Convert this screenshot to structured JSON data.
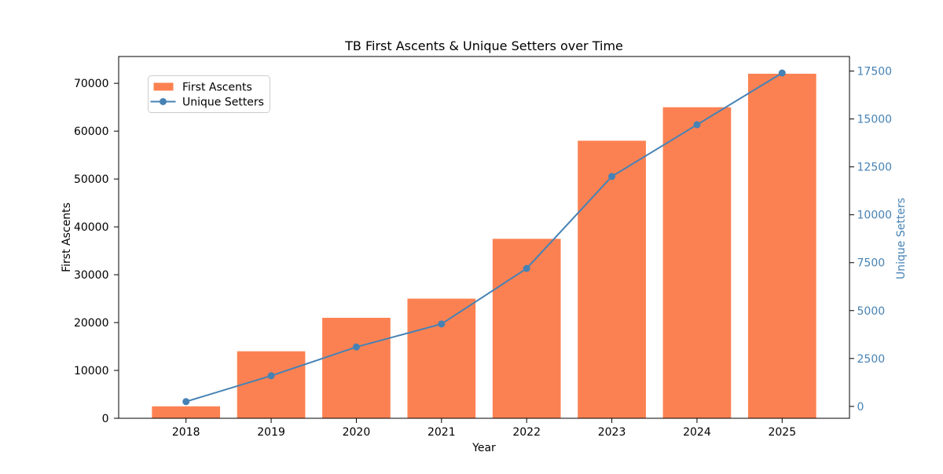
{
  "chart_data": {
    "type": "bar+line",
    "title": "TB First Ascents & Unique Setters over Time",
    "xlabel": "Year",
    "categories": [
      "2018",
      "2019",
      "2020",
      "2021",
      "2022",
      "2023",
      "2024",
      "2025"
    ],
    "series": [
      {
        "name": "First Ascents",
        "type": "bar",
        "axis": "left",
        "color": "#FC8152",
        "values": [
          2500,
          14000,
          21000,
          25000,
          37500,
          58000,
          65000,
          72000
        ]
      },
      {
        "name": "Unique Setters",
        "type": "line",
        "axis": "right",
        "color": "#4682B4",
        "marker": "circle",
        "values": [
          250,
          1600,
          3100,
          4300,
          7200,
          12000,
          14700,
          17400
        ]
      }
    ],
    "left_axis": {
      "label": "First Ascents",
      "ticks": [
        "0",
        "10000",
        "20000",
        "30000",
        "40000",
        "50000",
        "60000",
        "70000"
      ],
      "range": [
        0,
        75600
      ],
      "text_color": "#000000"
    },
    "right_axis": {
      "label": "Unique Setters",
      "ticks": [
        "0",
        "2500",
        "5000",
        "7500",
        "10000",
        "12500",
        "15000",
        "17500"
      ],
      "range": [
        -620,
        18260
      ],
      "text_color": "#4682B4"
    },
    "legend": {
      "position": "upper left",
      "entries": [
        "First Ascents",
        "Unique Setters"
      ]
    },
    "style": {
      "bar_color": "#FC8152",
      "line_color": "#4682B4",
      "text_color": "#000000",
      "spine_color": "#000000",
      "legend_border_color": "#CCCCCC",
      "background": "#FFFFFF",
      "bar_width_fraction": 0.8,
      "grid": "off"
    }
  }
}
